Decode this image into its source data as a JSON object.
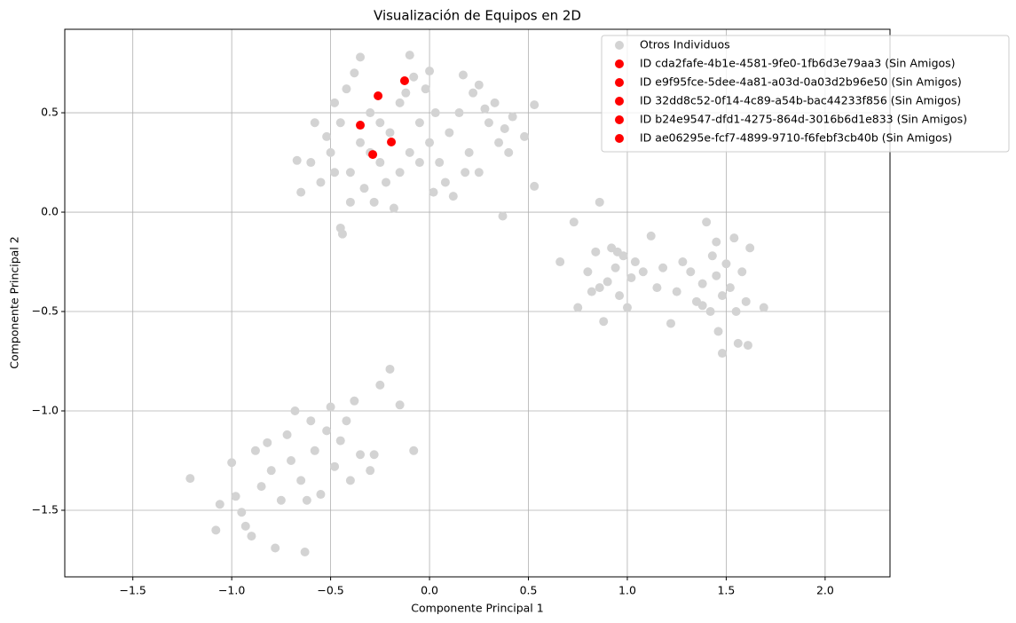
{
  "chart_data": {
    "type": "scatter",
    "title": "Visualización de Equipos en 2D",
    "x_label": "Componente Principal 1",
    "y_label": "Componente Principal 2",
    "xlim": [
      -1.844,
      2.328
    ],
    "ylim": [
      -1.835,
      0.92
    ],
    "xticks": [
      {
        "value": -1.5,
        "label": "−1.5"
      },
      {
        "value": -1,
        "label": "−1.0"
      },
      {
        "value": -0.5,
        "label": "−0.5"
      },
      {
        "value": 0,
        "label": "0.0"
      },
      0.5,
      {
        "value": 1,
        "label": "1.0"
      },
      1.5,
      {
        "value": 2,
        "label": "2.0"
      }
    ],
    "yticks": [
      {
        "value": -1.5,
        "label": "−1.5"
      },
      {
        "value": -1,
        "label": "−1.0"
      },
      {
        "value": -0.5,
        "label": "−0.5"
      },
      {
        "value": 0,
        "label": "0.0"
      },
      0.5
    ],
    "grid": true,
    "legend": "upper right",
    "series": [
      {
        "name": "Otros Individuos",
        "color": "#d3d3d3",
        "x": [
          -0.5,
          -0.45,
          -0.4,
          -0.35,
          -0.3,
          -0.25,
          -0.2,
          -0.15,
          -0.1,
          -0.05,
          0,
          0.05,
          0.1,
          0.15,
          0.2,
          0.25,
          0.3,
          0.35,
          0.4,
          -0.55,
          -0.6,
          -0.65,
          -0.52,
          -0.48,
          -0.42,
          -0.38,
          -0.33,
          -0.28,
          -0.22,
          -0.18,
          -0.12,
          -0.08,
          -0.02,
          0.03,
          0.08,
          0.12,
          0.18,
          0.22,
          0.28,
          0.33,
          0.38,
          0.42,
          0.48,
          0.53,
          0.53,
          0.37,
          -0.45,
          -0.44,
          -0.35,
          -0.1,
          -0.3,
          -0.25,
          -0.15,
          -0.05,
          0.02,
          -0.4,
          -0.58,
          -0.67,
          -0.48,
          0,
          0.25,
          0.17,
          -1.21,
          -1.08,
          -1.06,
          -1,
          -0.98,
          -0.95,
          -0.93,
          -0.9,
          -0.88,
          -0.85,
          -0.8,
          -0.78,
          -0.75,
          -0.72,
          -0.7,
          -0.68,
          -0.65,
          -0.63,
          -0.6,
          -0.58,
          -0.55,
          -0.52,
          -0.5,
          -0.48,
          -0.45,
          -0.42,
          -0.4,
          -0.38,
          -0.35,
          -0.3,
          -0.28,
          -0.25,
          -0.2,
          -0.15,
          -0.08,
          -0.62,
          -0.82,
          0.66,
          0.75,
          0.8,
          0.82,
          0.84,
          0.86,
          0.88,
          0.9,
          0.92,
          0.94,
          0.96,
          0.98,
          1,
          1.02,
          1.04,
          1.08,
          1.12,
          1.15,
          1.18,
          0.73,
          0.86,
          0.95,
          1.22,
          1.25,
          1.28,
          1.32,
          1.35,
          1.38,
          1.4,
          1.42,
          1.43,
          1.45,
          1.46,
          1.48,
          1.48,
          1.5,
          1.52,
          1.54,
          1.55,
          1.56,
          1.58,
          1.6,
          1.61,
          1.62,
          1.69,
          1.38,
          1.45
        ],
        "y": [
          0.3,
          0.45,
          0.2,
          0.35,
          0.5,
          0.25,
          0.4,
          0.55,
          0.3,
          0.45,
          0.35,
          0.25,
          0.4,
          0.5,
          0.3,
          0.2,
          0.45,
          0.35,
          0.3,
          0.15,
          0.25,
          0.1,
          0.38,
          0.55,
          0.62,
          0.7,
          0.12,
          0.05,
          0.15,
          0.02,
          0.6,
          0.68,
          0.62,
          0.5,
          0.15,
          0.08,
          0.2,
          0.6,
          0.52,
          0.55,
          0.42,
          0.48,
          0.38,
          0.54,
          0.13,
          -0.02,
          -0.08,
          -0.11,
          0.78,
          0.79,
          0.3,
          0.45,
          0.2,
          0.25,
          0.1,
          0.05,
          0.45,
          0.26,
          0.2,
          0.71,
          0.64,
          0.69,
          -1.34,
          -1.6,
          -1.47,
          -1.26,
          -1.43,
          -1.51,
          -1.58,
          -1.63,
          -1.2,
          -1.38,
          -1.3,
          -1.69,
          -1.45,
          -1.12,
          -1.25,
          -1,
          -1.35,
          -1.71,
          -1.05,
          -1.2,
          -1.42,
          -1.1,
          -0.98,
          -1.28,
          -1.15,
          -1.05,
          -1.35,
          -0.95,
          -1.22,
          -1.3,
          -1.22,
          -0.87,
          -0.79,
          -0.97,
          -1.2,
          -1.45,
          -1.16,
          -0.25,
          -0.48,
          -0.3,
          -0.4,
          -0.2,
          0.05,
          -0.55,
          -0.35,
          -0.18,
          -0.28,
          -0.42,
          -0.22,
          -0.48,
          -0.33,
          -0.25,
          -0.3,
          -0.12,
          -0.38,
          -0.28,
          -0.05,
          -0.38,
          -0.2,
          -0.56,
          -0.4,
          -0.25,
          -0.3,
          -0.45,
          -0.36,
          -0.05,
          -0.5,
          -0.22,
          -0.32,
          -0.6,
          -0.42,
          -0.71,
          -0.26,
          -0.38,
          -0.13,
          -0.5,
          -0.66,
          -0.3,
          -0.45,
          -0.67,
          -0.18,
          -0.48,
          -0.47,
          -0.15
        ]
      },
      {
        "name": "ID cda2fafe-4b1e-4581-9fe0-1fb6d3e79aa3 (Sin Amigos)",
        "color": "#ff0000",
        "x": [
          -0.126
        ],
        "y": [
          0.661
        ]
      },
      {
        "name": "ID e9f95fce-5dee-4a81-a03d-0a03d2b96e50 (Sin Amigos)",
        "color": "#ff0000",
        "x": [
          -0.26
        ],
        "y": [
          0.585
        ]
      },
      {
        "name": "ID 32dd8c52-0f14-4c89-a54b-bac44233f856 (Sin Amigos)",
        "color": "#ff0000",
        "x": [
          -0.35
        ],
        "y": [
          0.4375
        ]
      },
      {
        "name": "ID b24e9547-dfd1-4275-864d-3016b6d1e833 (Sin Amigos)",
        "color": "#ff0000",
        "x": [
          -0.193
        ],
        "y": [
          0.353
        ]
      },
      {
        "name": "ID ae06295e-fcf7-4899-9710-f6febf3cb40b (Sin Amigos)",
        "color": "#ff0000",
        "x": [
          -0.287
        ],
        "y": [
          0.29
        ]
      }
    ]
  }
}
